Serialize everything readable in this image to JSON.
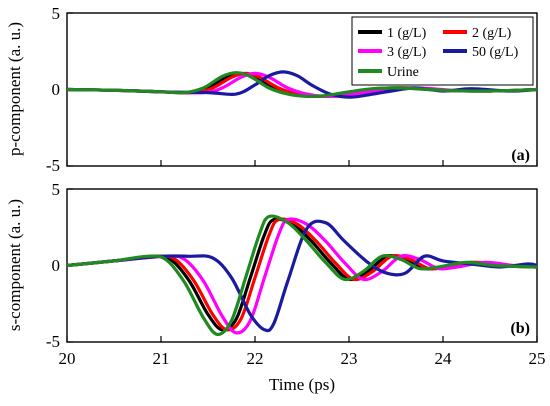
{
  "chart_data": {
    "type": "line",
    "xlabel": "Time (ps)",
    "xlim": [
      20,
      25
    ],
    "xticks": [
      "20",
      "21",
      "22",
      "23",
      "24",
      "25"
    ],
    "legend": {
      "placement": "top-right",
      "entries": [
        {
          "label": "1 (g/L)",
          "color": "#000000"
        },
        {
          "label": "2 (g/L)",
          "color": "#ff0000"
        },
        {
          "label": "3 (g/L)",
          "color": "#ff00ff"
        },
        {
          "label": "50 (g/L)",
          "color": "#1a1aa0"
        },
        {
          "label": "Urine",
          "color": "#1f8a1f"
        }
      ]
    },
    "panels": [
      {
        "tag": "(a)",
        "ylabel": "p-component (a. u.)",
        "ylim": [
          -5,
          5
        ],
        "yticks": [
          "5",
          "0",
          "-5"
        ],
        "series": [
          {
            "name": "1 (g/L)",
            "color": "#000000",
            "x": [
              20,
              20.5,
              21,
              21.3,
              21.5,
              21.7,
              21.85,
              22,
              22.2,
              22.4,
              22.6,
              22.8,
              23,
              23.3,
              23.6,
              24,
              24.5,
              25
            ],
            "y": [
              0,
              -0.05,
              -0.15,
              -0.2,
              0.1,
              0.8,
              1.05,
              0.8,
              0.1,
              -0.3,
              -0.45,
              -0.4,
              -0.2,
              0.05,
              0.1,
              -0.05,
              -0.1,
              0
            ]
          },
          {
            "name": "2 (g/L)",
            "color": "#ff0000",
            "x": [
              20,
              20.5,
              21,
              21.35,
              21.55,
              21.75,
              21.9,
              22.05,
              22.25,
              22.45,
              22.65,
              22.85,
              23.05,
              23.35,
              23.65,
              24,
              24.5,
              25
            ],
            "y": [
              0,
              -0.05,
              -0.15,
              -0.2,
              0.1,
              0.8,
              1.05,
              0.8,
              0.1,
              -0.3,
              -0.45,
              -0.4,
              -0.2,
              0.05,
              0.1,
              -0.05,
              -0.1,
              0
            ]
          },
          {
            "name": "3 (g/L)",
            "color": "#ff00ff",
            "x": [
              20,
              20.5,
              21,
              21.45,
              21.65,
              21.85,
              22,
              22.15,
              22.35,
              22.55,
              22.75,
              22.95,
              23.15,
              23.45,
              23.75,
              24.1,
              24.5,
              25
            ],
            "y": [
              0,
              -0.05,
              -0.15,
              -0.2,
              0.1,
              0.8,
              1.05,
              0.8,
              0.1,
              -0.3,
              -0.45,
              -0.4,
              -0.2,
              0.05,
              0.1,
              -0.05,
              -0.1,
              0
            ]
          },
          {
            "name": "50 (g/L)",
            "color": "#1a1aa0",
            "x": [
              20,
              20.5,
              21,
              21.5,
              21.8,
              22,
              22.15,
              22.3,
              22.45,
              22.6,
              22.8,
              23,
              23.2,
              23.45,
              23.7,
              24,
              24.3,
              24.7,
              25
            ],
            "y": [
              0,
              -0.05,
              -0.15,
              -0.2,
              -0.3,
              0.3,
              0.9,
              1.15,
              0.9,
              0.3,
              -0.3,
              -0.5,
              -0.35,
              -0.1,
              0.1,
              -0.1,
              0.05,
              -0.1,
              0
            ]
          },
          {
            "name": "Urine",
            "color": "#1f8a1f",
            "x": [
              20,
              20.5,
              21,
              21.25,
              21.45,
              21.65,
              21.8,
              21.95,
              22.15,
              22.35,
              22.55,
              22.75,
              22.95,
              23.25,
              23.55,
              24,
              24.5,
              25
            ],
            "y": [
              0,
              -0.05,
              -0.15,
              -0.2,
              0.1,
              0.85,
              1.1,
              0.85,
              0.1,
              -0.3,
              -0.45,
              -0.4,
              -0.2,
              0.05,
              0.1,
              -0.05,
              -0.1,
              0
            ]
          }
        ]
      },
      {
        "tag": "(b)",
        "ylabel": "s-component (a. u.)",
        "ylim": [
          -5,
          5
        ],
        "yticks": [
          "5",
          "0",
          "-5"
        ],
        "series": [
          {
            "name": "1 (g/L)",
            "color": "#000000",
            "x": [
              20,
              20.5,
              20.9,
              21.1,
              21.3,
              21.5,
              21.65,
              21.8,
              21.95,
              22.1,
              22.2,
              22.4,
              22.6,
              22.8,
              23,
              23.2,
              23.4,
              23.6,
              23.8,
              24,
              24.3,
              24.6,
              25
            ],
            "y": [
              0,
              0.3,
              0.6,
              0.4,
              -1.0,
              -3.2,
              -4.2,
              -3.5,
              -0.8,
              2.0,
              3.0,
              2.7,
              1.6,
              0.2,
              -0.9,
              -0.4,
              0.6,
              0.4,
              -0.2,
              -0.1,
              0.2,
              0,
              -0.1
            ]
          },
          {
            "name": "2 (g/L)",
            "color": "#ff0000",
            "x": [
              20,
              20.5,
              20.95,
              21.15,
              21.35,
              21.55,
              21.7,
              21.85,
              22,
              22.15,
              22.25,
              22.45,
              22.65,
              22.85,
              23.05,
              23.25,
              23.45,
              23.65,
              23.85,
              24.05,
              24.35,
              24.65,
              25
            ],
            "y": [
              0,
              0.3,
              0.6,
              0.4,
              -1.0,
              -3.2,
              -4.2,
              -3.5,
              -0.8,
              2.0,
              3.0,
              2.7,
              1.6,
              0.2,
              -0.9,
              -0.4,
              0.6,
              0.4,
              -0.2,
              -0.1,
              0.2,
              0,
              -0.1
            ]
          },
          {
            "name": "3 (g/L)",
            "color": "#ff00ff",
            "x": [
              20,
              20.5,
              21.05,
              21.25,
              21.45,
              21.65,
              21.8,
              21.95,
              22.1,
              22.25,
              22.35,
              22.55,
              22.75,
              22.95,
              23.15,
              23.35,
              23.55,
              23.75,
              23.95,
              24.15,
              24.45,
              24.75,
              25
            ],
            "y": [
              0,
              0.3,
              0.6,
              0.4,
              -1.0,
              -3.3,
              -4.4,
              -3.6,
              -0.8,
              2.0,
              3.0,
              2.7,
              1.6,
              0.2,
              -0.9,
              -0.4,
              0.6,
              0.4,
              -0.2,
              -0.1,
              0.2,
              0,
              -0.1
            ]
          },
          {
            "name": "50 (g/L)",
            "color": "#1a1aa0",
            "x": [
              20,
              20.5,
              21,
              21.3,
              21.55,
              21.75,
              21.95,
              22.1,
              22.2,
              22.35,
              22.55,
              22.75,
              22.95,
              23.2,
              23.4,
              23.6,
              23.8,
              24,
              24.3,
              24.6,
              24.9,
              25
            ],
            "y": [
              0,
              0.3,
              0.6,
              0.6,
              0.5,
              -0.8,
              -3.2,
              -4.2,
              -3.8,
              -1.0,
              2.4,
              2.8,
              1.6,
              0.2,
              -0.5,
              -0.5,
              0.6,
              0.3,
              0.1,
              -0.1,
              0.1,
              0
            ]
          },
          {
            "name": "Urine",
            "color": "#1f8a1f",
            "x": [
              20,
              20.5,
              20.85,
              21.05,
              21.25,
              21.45,
              21.6,
              21.75,
              21.9,
              22.05,
              22.15,
              22.35,
              22.55,
              22.75,
              22.95,
              23.15,
              23.35,
              23.55,
              23.75,
              23.95,
              24.25,
              24.55,
              25
            ],
            "y": [
              0,
              0.3,
              0.6,
              0.4,
              -1.1,
              -3.4,
              -4.5,
              -3.6,
              -0.8,
              2.1,
              3.2,
              2.8,
              1.6,
              0.2,
              -0.9,
              -0.4,
              0.6,
              0.4,
              -0.2,
              -0.1,
              0.2,
              0,
              -0.1
            ]
          }
        ]
      }
    ]
  }
}
